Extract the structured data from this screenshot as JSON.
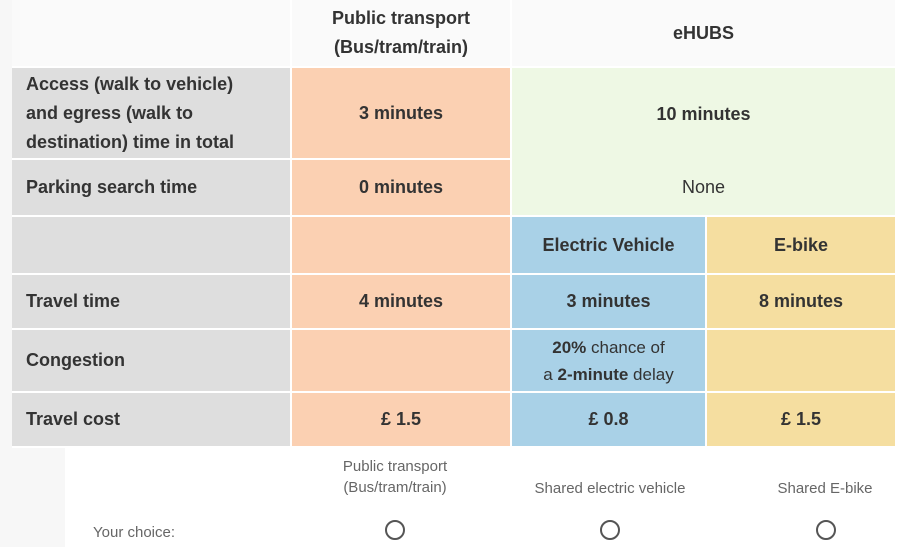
{
  "table": {
    "header": {
      "public_transport": [
        "Public transport",
        "(Bus/tram/train)"
      ],
      "ehubs": "eHUBS"
    },
    "rows": [
      {
        "label": [
          "Access (walk to vehicle)",
          "and egress (walk to",
          "destination) time in total"
        ],
        "public_transport": "3 minutes",
        "ehubs": "10 minutes"
      },
      {
        "label": "Parking search time",
        "public_transport": "0 minutes",
        "ehubs": "None"
      },
      {
        "electric_vehicle": "Electric Vehicle",
        "e_bike": "E-bike"
      },
      {
        "label": "Travel time",
        "public_transport": "4 minutes",
        "electric_vehicle": "3 minutes",
        "e_bike": "8 minutes"
      },
      {
        "label": "Congestion",
        "electric_vehicle": {
          "line1": [
            "20%",
            " chance of"
          ],
          "line2": [
            "a ",
            "2-minute",
            " delay"
          ]
        }
      },
      {
        "label": "Travel cost",
        "public_transport": "£ 1.5",
        "electric_vehicle": "£ 0.8",
        "e_bike": "£ 1.5"
      }
    ]
  },
  "choice": {
    "label": "Your choice:",
    "options": [
      [
        "Public transport",
        "(Bus/tram/train)"
      ],
      "Shared electric vehicle",
      "Shared E-bike"
    ]
  }
}
